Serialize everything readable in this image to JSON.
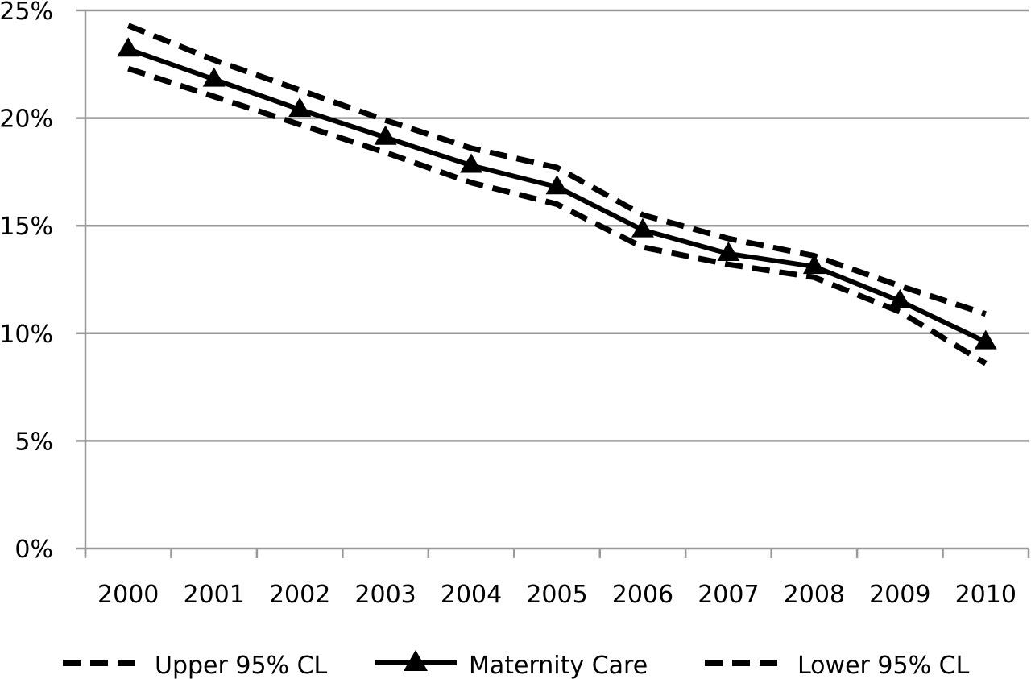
{
  "chart_data": {
    "type": "line",
    "title": "",
    "xlabel": "",
    "ylabel": "",
    "categories": [
      "2000",
      "2001",
      "2002",
      "2003",
      "2004",
      "2005",
      "2006",
      "2007",
      "2008",
      "2009",
      "2010"
    ],
    "y_tick_labels": [
      "0%",
      "5%",
      "10%",
      "15%",
      "20%",
      "25%"
    ],
    "y_ticks": [
      0,
      5,
      10,
      15,
      20,
      25
    ],
    "ylim": [
      0,
      25
    ],
    "grid": "horizontal",
    "legend_position": "bottom",
    "series": [
      {
        "name": "Upper 95% CL",
        "style": "dashed",
        "marker": "none",
        "values": [
          24.3,
          22.7,
          21.3,
          19.9,
          18.6,
          17.7,
          15.5,
          14.4,
          13.6,
          12.2,
          10.9
        ]
      },
      {
        "name": "Maternity Care",
        "style": "solid",
        "marker": "triangle",
        "values": [
          23.2,
          21.8,
          20.4,
          19.1,
          17.8,
          16.8,
          14.8,
          13.7,
          13.1,
          11.5,
          9.6
        ]
      },
      {
        "name": "Lower 95% CL",
        "style": "dashed",
        "marker": "none",
        "values": [
          22.3,
          21.0,
          19.7,
          18.4,
          17.0,
          16.0,
          14.0,
          13.2,
          12.6,
          11.0,
          8.6
        ]
      }
    ],
    "colors": {
      "line": "#000000",
      "grid": "#999999",
      "axis": "#999999",
      "background": "#ffffff"
    }
  }
}
